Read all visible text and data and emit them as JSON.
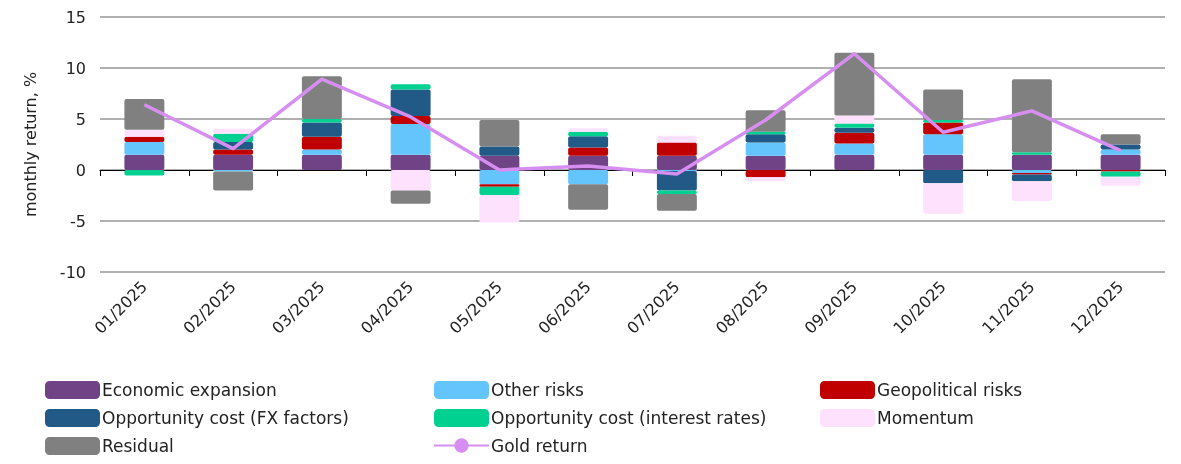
{
  "chart_data": {
    "type": "bar",
    "stacked": true,
    "ylabel": "monthly return, %",
    "categories": [
      "01/2025",
      "02/2025",
      "03/2025",
      "04/2025",
      "05/2025",
      "06/2025",
      "07/2025",
      "08/2025",
      "09/2025",
      "10/2025",
      "11/2025",
      "12/2025"
    ],
    "series": [
      {
        "name": "Economic expansion",
        "color": "#6f4385",
        "values": [
          1.5,
          1.5,
          1.5,
          1.5,
          1.4,
          1.4,
          1.4,
          1.4,
          1.5,
          1.5,
          1.5,
          1.5
        ]
      },
      {
        "name": "Other risks",
        "color": "#63c5fb",
        "values": [
          1.25,
          -0.15,
          0.5,
          3.0,
          -1.4,
          -1.4,
          -0.1,
          1.3,
          1.1,
          2.0,
          -0.3,
          0.5
        ]
      },
      {
        "name": "Geopolitical risks",
        "color": "#c00000",
        "values": [
          0.5,
          0.5,
          1.25,
          0.8,
          -0.25,
          0.8,
          1.3,
          -0.7,
          1.05,
          1.15,
          -0.15,
          -0.15
        ]
      },
      {
        "name": "Opportunity cost (FX factors)",
        "color": "#215987",
        "values": [
          0,
          0.75,
          1.4,
          2.6,
          0.9,
          1.1,
          -1.9,
          0.8,
          0.5,
          -1.3,
          -0.65,
          0.5
        ]
      },
      {
        "name": "Opportunity cost (interest rates)",
        "color": "#00d191",
        "values": [
          -0.55,
          0.8,
          0.35,
          0.5,
          -0.8,
          0.45,
          -0.35,
          0.25,
          0.4,
          0.25,
          0.25,
          -0.5
        ]
      },
      {
        "name": "Momentum",
        "color": "#fde1fd",
        "values": [
          0.7,
          0.5,
          0,
          -2.0,
          -2.7,
          0.35,
          0.65,
          -0.4,
          0.8,
          -3.0,
          -1.95,
          -0.9
        ]
      },
      {
        "name": "Residual",
        "color": "#808080",
        "values": [
          3.0,
          -1.85,
          4.2,
          -1.3,
          2.6,
          -2.5,
          -1.65,
          2.1,
          6.15,
          3.0,
          7.15,
          1.0
        ]
      },
      {
        "name": "Gold return",
        "type": "line",
        "color": "#d68ff0",
        "values": [
          6.4,
          2.1,
          8.9,
          5.2,
          0.0,
          0.4,
          -0.4,
          4.9,
          11.4,
          3.7,
          5.8,
          1.9
        ]
      }
    ],
    "ylim": [
      -10,
      15
    ],
    "yticks": [
      -10,
      -5,
      0,
      5,
      10,
      15
    ],
    "grid": "y",
    "legend": "bottom",
    "marker": "none",
    "line_style": "solid"
  }
}
